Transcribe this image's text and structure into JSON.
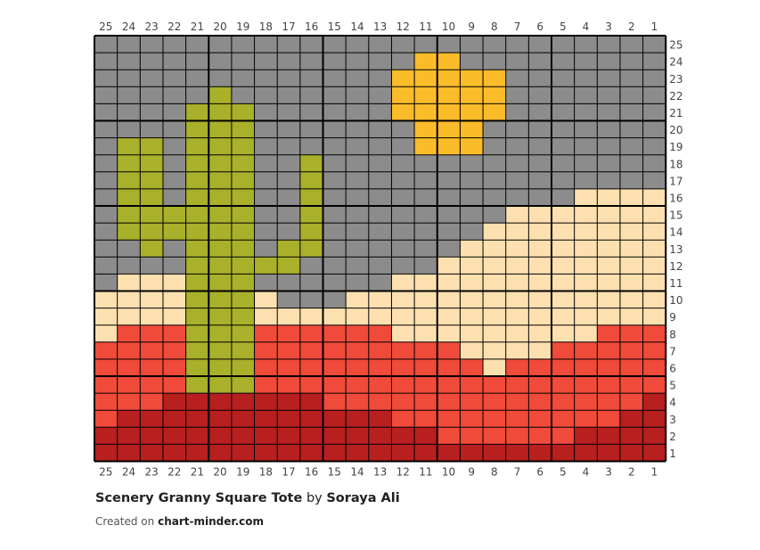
{
  "chart": {
    "columns": [
      "25",
      "24",
      "23",
      "22",
      "21",
      "20",
      "19",
      "18",
      "17",
      "16",
      "15",
      "14",
      "13",
      "12",
      "11",
      "10",
      "9",
      "8",
      "7",
      "6",
      "5",
      "4",
      "3",
      "2",
      "1"
    ],
    "rows": [
      "25",
      "24",
      "23",
      "22",
      "21",
      "20",
      "19",
      "18",
      "17",
      "16",
      "15",
      "14",
      "13",
      "12",
      "11",
      "10",
      "9",
      "8",
      "7",
      "6",
      "5",
      "4",
      "3",
      "2",
      "1"
    ],
    "palette": {
      "G": "#8c8c8c",
      "Y": "#fbbc2a",
      "C": "#a9b02a",
      "P": "#fde0b0",
      "R": "#f04a3a",
      "D": "#b81f1f"
    },
    "grid": [
      "GGGGGGGGGGGGGGGGGGGGGGGGG",
      "GGGGGGGGGGGGGGYYGGGGGGGGG",
      "GGGGGGGGGGGGGYYYYYGGGGGGG",
      "GGGGGCGGGGGGGYYYYYGGGGGGG",
      "GGGGCCCGGGGGGYYYYYGGGGGGG",
      "GGGGCCCGGGGGGGYYYGGGGGGGG",
      "GCCGCCCGGGGGGGYYYGGGGGGGG",
      "GCCGCCCGGCGGGGGGGGGGGGGGG",
      "GCCGCCCGGCGGGGGGGGGGGGGGG",
      "GCCGCCCGGCGGGGGGGGGGGPPPP",
      "GCCCCCCGGCGGGGGGGGPPPPPPP",
      "GCCCCCCGGCGGGGGGGPPPPPPPP",
      "GGCGCCCGCCGGGGGGPPPPPPPPP",
      "GGGGCCCCCGGGGGGPPPPPPPPPP",
      "GPPPCCCGGGGGGPPPPPPPPPPPP",
      "PPPPCCCPGGGPPPPPPPPPPPPPP",
      "PPPPCCCPPPPPPPPPPPPPPPPPP",
      "PRRRCCCRRRRRRPPPPPPPPPRRR",
      "RRRRCCCRRRRRRRRRPPPPRRRRR",
      "RRRRCCCRRRRRRRRRRPRRRRRRR",
      "RRRRCCCRRRRRRRRRRRRRRRRRR",
      "RRRDDDDDDDRRRRRRRRRRRRRRD",
      "RDDDDDDDDDDDDRRRRRRRRRRDD",
      "DDDDDDDDDDDDDDDRRRRRRDDDD",
      "DDDDDDDDDDDDDDDDDDDDDDDDD"
    ]
  },
  "footer": {
    "title": "Scenery Granny Square Tote",
    "by": "by",
    "author": "Soraya Ali",
    "created_prefix": "Created on",
    "site": "chart-minder.com"
  }
}
